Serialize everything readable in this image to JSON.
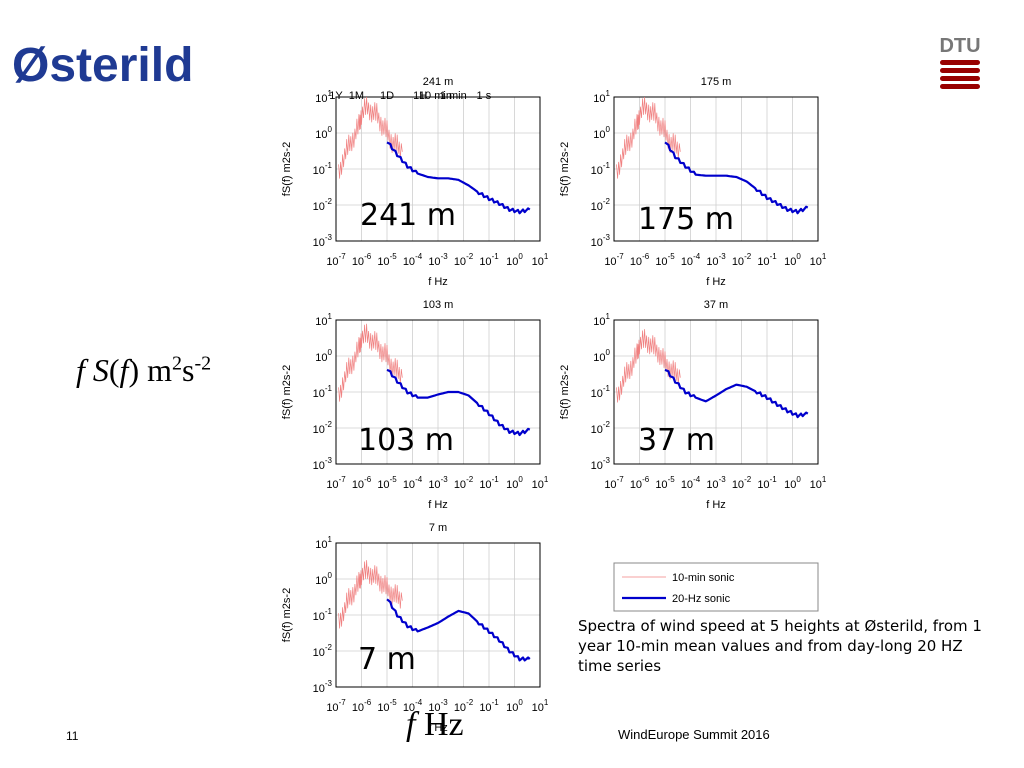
{
  "slide": {
    "title": "Østerild",
    "page_number": "11",
    "footer": "WindEurope Summit 2016",
    "caption": "Spectra of wind speed at 5 heights at Østerild, from 1 year 10-min mean values and from day-long 20 HZ time series",
    "big_ylabel": {
      "f": "f",
      "S": "S",
      "paren_open": "(",
      "paren_f": "f",
      "rest": ") m",
      "sup2": "2",
      "s": "s",
      "supm2": "-2"
    },
    "big_xlabel": {
      "f": "f",
      "hz": "Hz"
    },
    "logo_text": "DTU"
  },
  "colors": {
    "title": "#1f3a93",
    "sonic10": "#f08080",
    "hz20": "#0000cc",
    "logo": "#990000",
    "grid": "#cfcfcf"
  },
  "legend": {
    "items": [
      "10-min sonic",
      "20-Hz sonic"
    ]
  },
  "top_marks": [
    "1Y",
    "1M",
    "1D",
    "1H",
    "10 min",
    "1 min",
    "1 s"
  ],
  "chart_data": [
    {
      "type": "line",
      "title": "241 m",
      "label": "241 m",
      "xlabel": "f Hz",
      "ylabel": "fS(f) m2s-2",
      "xscale": "log",
      "yscale": "log",
      "xlim": [
        1e-07,
        10
      ],
      "ylim": [
        0.001,
        10
      ],
      "grid": true,
      "xticks": [
        -7,
        -6,
        -5,
        -4,
        -3,
        -2,
        -1,
        0,
        1
      ],
      "yticks": [
        -3,
        -2,
        -1,
        0,
        1
      ],
      "series": [
        {
          "name": "10-min sonic",
          "x_log10": [
            -6.9,
            -6.7,
            -6.5,
            -6.3,
            -6.1,
            -6.0,
            -5.8,
            -5.6,
            -5.4,
            -5.2,
            -5.0,
            -4.8,
            -4.6,
            -4.4
          ],
          "y": [
            0.06,
            0.2,
            0.4,
            0.7,
            1.5,
            3.0,
            5.0,
            3.5,
            3.0,
            1.5,
            1.0,
            0.5,
            0.4,
            0.3
          ]
        },
        {
          "name": "20-Hz sonic",
          "x_log10": [
            -5.0,
            -4.6,
            -4.2,
            -3.8,
            -3.4,
            -3.0,
            -2.6,
            -2.2,
            -1.8,
            -1.4,
            -1.0,
            -0.6,
            -0.2,
            0.2,
            0.6
          ],
          "y": [
            0.6,
            0.25,
            0.12,
            0.075,
            0.06,
            0.055,
            0.055,
            0.05,
            0.035,
            0.022,
            0.015,
            0.011,
            0.0075,
            0.0065,
            0.0075
          ]
        }
      ]
    },
    {
      "type": "line",
      "title": "175 m",
      "label": "175 m",
      "xlabel": "f Hz",
      "ylabel": "fS(f) m2s-2",
      "xscale": "log",
      "yscale": "log",
      "xlim": [
        1e-07,
        10
      ],
      "ylim": [
        0.001,
        10
      ],
      "grid": true,
      "xticks": [
        -7,
        -6,
        -5,
        -4,
        -3,
        -2,
        -1,
        0,
        1
      ],
      "yticks": [
        -3,
        -2,
        -1,
        0,
        1
      ],
      "series": [
        {
          "name": "10-min sonic",
          "x_log10": [
            -6.9,
            -6.7,
            -6.5,
            -6.3,
            -6.1,
            -6.0,
            -5.8,
            -5.6,
            -5.4,
            -5.2,
            -5.0,
            -4.8,
            -4.6,
            -4.4
          ],
          "y": [
            0.06,
            0.2,
            0.4,
            0.7,
            1.5,
            3.0,
            5.0,
            3.5,
            3.0,
            1.5,
            1.0,
            0.5,
            0.4,
            0.3
          ]
        },
        {
          "name": "20-Hz sonic",
          "x_log10": [
            -5.0,
            -4.6,
            -4.2,
            -3.8,
            -3.4,
            -3.0,
            -2.6,
            -2.2,
            -1.8,
            -1.4,
            -1.0,
            -0.6,
            -0.2,
            0.2,
            0.6
          ],
          "y": [
            0.6,
            0.22,
            0.12,
            0.07,
            0.065,
            0.065,
            0.065,
            0.06,
            0.045,
            0.027,
            0.016,
            0.011,
            0.0075,
            0.0065,
            0.0085
          ]
        }
      ]
    },
    {
      "type": "line",
      "title": "103 m",
      "label": "103 m",
      "xlabel": "f Hz",
      "ylabel": "fS(f) m2s-2",
      "xscale": "log",
      "yscale": "log",
      "xlim": [
        1e-07,
        10
      ],
      "ylim": [
        0.001,
        10
      ],
      "grid": true,
      "xticks": [
        -7,
        -6,
        -5,
        -4,
        -3,
        -2,
        -1,
        0,
        1
      ],
      "yticks": [
        -3,
        -2,
        -1,
        0,
        1
      ],
      "series": [
        {
          "name": "10-min sonic",
          "x_log10": [
            -6.9,
            -6.7,
            -6.5,
            -6.3,
            -6.1,
            -6.0,
            -5.8,
            -5.6,
            -5.4,
            -5.2,
            -5.0,
            -4.8,
            -4.6,
            -4.4
          ],
          "y": [
            0.06,
            0.2,
            0.4,
            0.7,
            1.5,
            3.0,
            3.5,
            2.5,
            2.0,
            1.2,
            0.9,
            0.45,
            0.35,
            0.25
          ]
        },
        {
          "name": "20-Hz sonic",
          "x_log10": [
            -5.0,
            -4.6,
            -4.2,
            -3.8,
            -3.4,
            -3.0,
            -2.6,
            -2.2,
            -1.8,
            -1.4,
            -1.0,
            -0.6,
            -0.2,
            0.2,
            0.6
          ],
          "y": [
            0.45,
            0.2,
            0.1,
            0.07,
            0.07,
            0.085,
            0.1,
            0.1,
            0.08,
            0.045,
            0.025,
            0.013,
            0.008,
            0.007,
            0.009
          ]
        }
      ]
    },
    {
      "type": "line",
      "title": "37 m",
      "label": "37 m",
      "xlabel": "f Hz",
      "ylabel": "fS(f) m2s-2",
      "xscale": "log",
      "yscale": "log",
      "xlim": [
        1e-07,
        10
      ],
      "ylim": [
        0.001,
        10
      ],
      "grid": true,
      "xticks": [
        -7,
        -6,
        -5,
        -4,
        -3,
        -2,
        -1,
        0,
        1
      ],
      "yticks": [
        -3,
        -2,
        -1,
        0,
        1
      ],
      "series": [
        {
          "name": "10-min sonic",
          "x_log10": [
            -6.9,
            -6.7,
            -6.5,
            -6.3,
            -6.1,
            -6.0,
            -5.8,
            -5.6,
            -5.4,
            -5.2,
            -5.0,
            -4.8,
            -4.6,
            -4.4
          ],
          "y": [
            0.06,
            0.15,
            0.3,
            0.5,
            1.0,
            2.0,
            2.5,
            2.0,
            1.5,
            1.0,
            0.6,
            0.4,
            0.3,
            0.25
          ]
        },
        {
          "name": "20-Hz sonic",
          "x_log10": [
            -5.0,
            -4.6,
            -4.2,
            -3.8,
            -3.4,
            -3.0,
            -2.6,
            -2.2,
            -1.8,
            -1.4,
            -1.0,
            -0.6,
            -0.2,
            0.2,
            0.6
          ],
          "y": [
            0.45,
            0.2,
            0.1,
            0.07,
            0.055,
            0.08,
            0.12,
            0.16,
            0.14,
            0.1,
            0.07,
            0.045,
            0.03,
            0.022,
            0.025
          ]
        }
      ]
    },
    {
      "type": "line",
      "title": "7 m",
      "label": "7 m",
      "xlabel": "f Hz",
      "ylabel": "fS(f) m2s-2",
      "xscale": "log",
      "yscale": "log",
      "xlim": [
        1e-07,
        10
      ],
      "ylim": [
        0.001,
        10
      ],
      "grid": true,
      "xticks": [
        -7,
        -6,
        -5,
        -4,
        -3,
        -2,
        -1,
        0,
        1
      ],
      "yticks": [
        -3,
        -2,
        -1,
        0,
        1
      ],
      "series": [
        {
          "name": "10-min sonic",
          "x_log10": [
            -6.9,
            -6.7,
            -6.5,
            -6.3,
            -6.1,
            -6.0,
            -5.8,
            -5.6,
            -5.4,
            -5.2,
            -5.0,
            -4.8,
            -4.6,
            -4.4
          ],
          "y": [
            0.05,
            0.12,
            0.25,
            0.4,
            0.7,
            1.2,
            1.5,
            1.2,
            1.0,
            0.7,
            0.5,
            0.35,
            0.3,
            0.25
          ]
        },
        {
          "name": "20-Hz sonic",
          "x_log10": [
            -5.0,
            -4.6,
            -4.2,
            -3.8,
            -3.4,
            -3.0,
            -2.6,
            -2.2,
            -1.8,
            -1.4,
            -1.0,
            -0.6,
            -0.2,
            0.2,
            0.6
          ],
          "y": [
            0.3,
            0.1,
            0.05,
            0.035,
            0.045,
            0.06,
            0.09,
            0.13,
            0.11,
            0.06,
            0.035,
            0.02,
            0.01,
            0.006,
            0.006
          ]
        }
      ]
    }
  ]
}
